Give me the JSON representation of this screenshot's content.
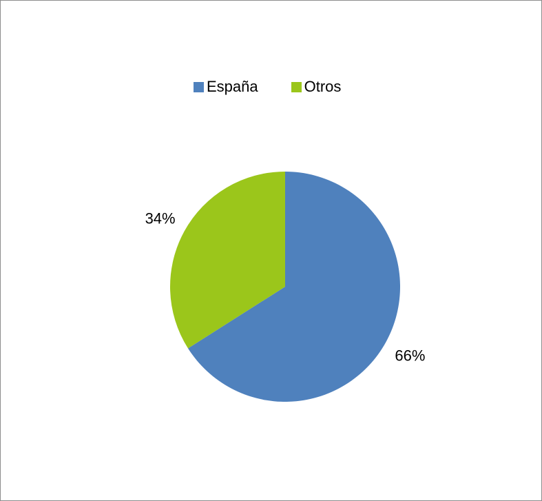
{
  "chart_data": {
    "type": "pie",
    "title": "",
    "categories": [
      "España",
      "Otros"
    ],
    "values": [
      66,
      34
    ],
    "labels": [
      "66%",
      "34%"
    ],
    "colors": [
      "#4f81bd",
      "#9bc61b"
    ],
    "legend_position": "top",
    "start_angle": "12 o'clock, clockwise"
  }
}
